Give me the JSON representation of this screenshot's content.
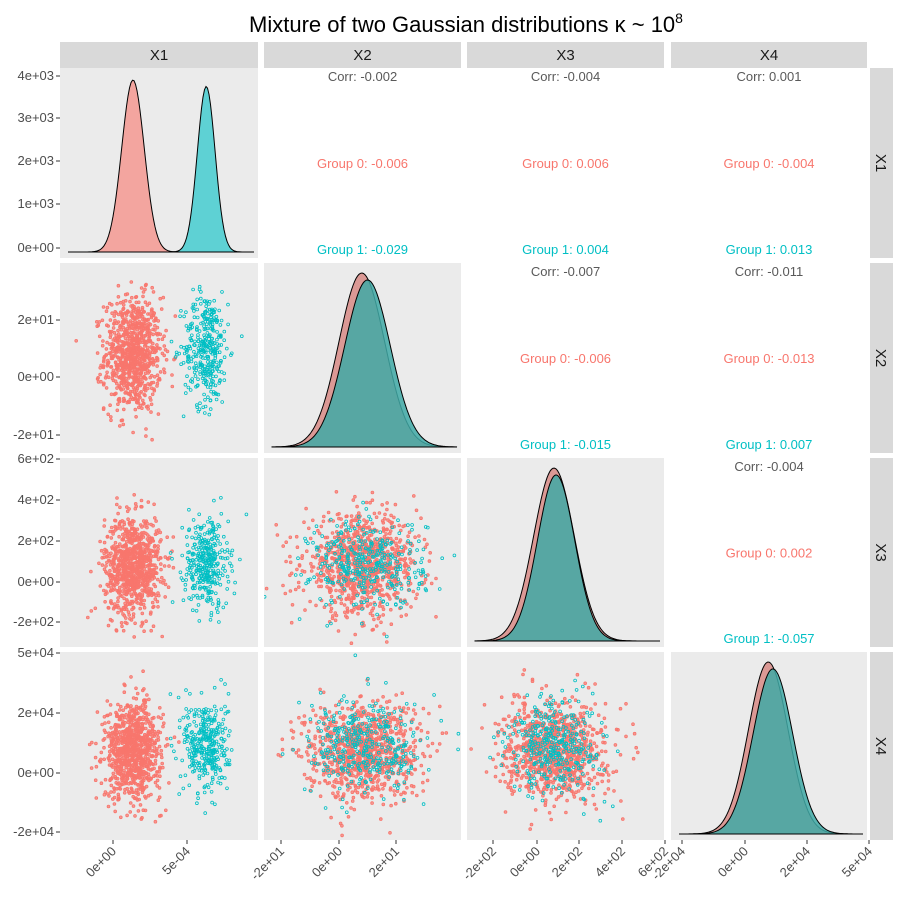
{
  "chart_data": {
    "type": "scatter-matrix",
    "title": "Mixture of two Gaussian distributions κ ~ 10",
    "title_superscript": "8",
    "variables": [
      "X1",
      "X2",
      "X3",
      "X4"
    ],
    "groups": [
      {
        "name": "Group 0",
        "color": "#F8766D"
      },
      {
        "name": "Group 1",
        "color": "#00BFC4"
      }
    ],
    "group_params": {
      "Group 0": {
        "mean": [
          0.000135,
          8,
          80,
          7500
        ],
        "sd": [
          9.5e-05,
          10,
          120,
          8000
        ]
      },
      "Group 1": {
        "mean": [
          0.00063,
          10,
          90,
          9000
        ],
        "sd": [
          7.5e-05,
          10,
          110,
          8000
        ]
      }
    },
    "correlations": [
      {
        "row": "X1",
        "col": "X2",
        "corr": "Corr: -0.002",
        "g0": "Group 0: -0.006",
        "g1": "Group 1: -0.029"
      },
      {
        "row": "X1",
        "col": "X3",
        "corr": "Corr: -0.004",
        "g0": "Group 0: 0.006",
        "g1": "Group 1: 0.004"
      },
      {
        "row": "X1",
        "col": "X4",
        "corr": "Corr: 0.001",
        "g0": "Group 0: -0.004",
        "g1": "Group 1: 0.013"
      },
      {
        "row": "X2",
        "col": "X3",
        "corr": "Corr: -0.007",
        "g0": "Group 0: -0.006",
        "g1": "Group 1: -0.015"
      },
      {
        "row": "X2",
        "col": "X4",
        "corr": "Corr: -0.011",
        "g0": "Group 0: -0.013",
        "g1": "Group 1: 0.007"
      },
      {
        "row": "X3",
        "col": "X4",
        "corr": "Corr: -0.004",
        "g0": "Group 0: 0.002",
        "g1": "Group 1: -0.057"
      }
    ],
    "x_tick_labels": [
      [
        "0e+00",
        "5e-04"
      ],
      [
        "-2e+01",
        "0e+00",
        "2e+01"
      ],
      [
        "-2e+02",
        "0e+00",
        "2e+02",
        "4e+02",
        "6e+02"
      ],
      [
        "-2e+04",
        "0e+00",
        "2e+04",
        "5e+04"
      ]
    ],
    "y_tick_labels": [
      [
        "4e+03",
        "3e+03",
        "2e+03",
        "1e+03",
        "0e+00"
      ],
      [
        "2e+01",
        "0e+00",
        "-2e+01"
      ],
      [
        "6e+02",
        "4e+02",
        "2e+02",
        "0e+00",
        "-2e+02"
      ],
      [
        "5e+04",
        "2e+04",
        "0e+00",
        "-2e+04"
      ]
    ],
    "density_ylim_X1": [
      0,
      4000
    ]
  }
}
